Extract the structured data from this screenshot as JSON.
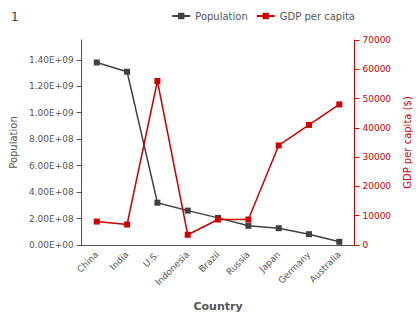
{
  "chart_data": {
    "type": "line",
    "title": "1",
    "categories": [
      "China",
      "India",
      "U.S.",
      "Indonesia",
      "Brazil",
      "Russia",
      "Japan",
      "Germany",
      "Australia"
    ],
    "series": [
      {
        "name": "Population",
        "color": "#404040",
        "marker": "square",
        "values": [
          1380000000,
          1310000000,
          320000000,
          260000000,
          205000000,
          145000000,
          127000000,
          82000000,
          24000000
        ]
      },
      {
        "name": "GDP per capita",
        "color": "#cc0000",
        "marker": "square",
        "axis": "y2",
        "values": [
          8000,
          7000,
          56000,
          3500,
          8700,
          8700,
          34000,
          41000,
          48000
        ]
      }
    ],
    "xlabel": "Country",
    "ylabel": "Population",
    "y2label": "GDP per capita ($)",
    "ylim": [
      0,
      1550000000
    ],
    "yticks": [
      {
        "value": 0,
        "label": "0.00E+00"
      },
      {
        "value": 200000000,
        "label": "2.00E+08"
      },
      {
        "value": 400000000,
        "label": "4.00E+08"
      },
      {
        "value": 600000000,
        "label": "6.00E+08"
      },
      {
        "value": 800000000,
        "label": "8.00E+08"
      },
      {
        "value": 1000000000,
        "label": "1.00E+09"
      },
      {
        "value": 1200000000,
        "label": "1.20E+09"
      },
      {
        "value": 1400000000,
        "label": "1.40E+09"
      }
    ],
    "y2lim": [
      0,
      70000
    ],
    "y2ticks": [
      0,
      10000,
      20000,
      30000,
      40000,
      50000,
      60000,
      70000
    ],
    "grid": false,
    "legend": "upper right"
  }
}
